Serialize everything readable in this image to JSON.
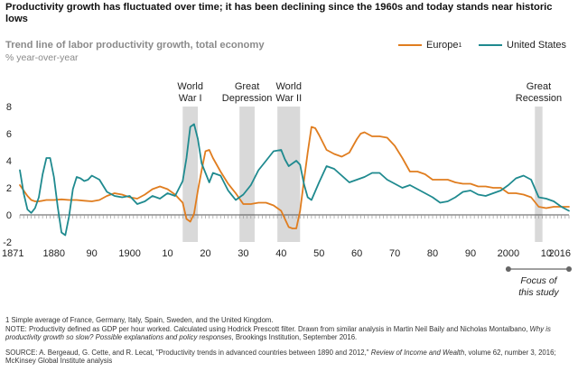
{
  "header": {
    "title": "Productivity growth has fluctuated over time; it has been declining since the 1960s and today stands near historic lows",
    "subtitle": "Trend line of labor productivity growth, total economy",
    "unit": "% year-over-year"
  },
  "legend": {
    "europe_label": "Europe",
    "europe_sup": "1",
    "us_label": "United States"
  },
  "colors": {
    "europe": "#e07d1f",
    "us": "#1f8a8f",
    "band": "#d9d9d9",
    "axis": "#555555"
  },
  "focus_label": "Focus of this study",
  "notes": {
    "footnote": "1  Simple average of France, Germany, Italy, Spain, Sweden, and the United Kingdom.",
    "note_lead": "NOTE: Productivity defined as GDP per hour worked. Calculated using Hodrick Prescott filter. Drawn from similar analysis in Martin Neil Baily and Nicholas Montalbano, ",
    "note_italic": "Why is productivity growth so slow? Possible explanations and policy responses",
    "note_tail": ", Brookings Institution, September 2016.",
    "source_lead": "SOURCE:  A. Bergeaud, G. Cette, and R. Lecat, \"Productivity trends in advanced countries between 1890 and 2012,\" ",
    "source_italic": "Review of Income and Wealth",
    "source_tail": ", volume 62, number 3, 2016; McKinsey Global Institute analysis"
  },
  "chart_data": {
    "type": "line",
    "xlim": [
      1871,
      2016
    ],
    "ylim": [
      -2,
      8
    ],
    "yticks": [
      -2,
      0,
      2,
      4,
      6,
      8
    ],
    "xtick_labels": [
      {
        "x": 1871,
        "label": "1871"
      },
      {
        "x": 1880,
        "label": "1880"
      },
      {
        "x": 1890,
        "label": "90"
      },
      {
        "x": 1900,
        "label": "1900"
      },
      {
        "x": 1910,
        "label": "10"
      },
      {
        "x": 1920,
        "label": "20"
      },
      {
        "x": 1930,
        "label": "30"
      },
      {
        "x": 1940,
        "label": "40"
      },
      {
        "x": 1950,
        "label": "50"
      },
      {
        "x": 1960,
        "label": "60"
      },
      {
        "x": 1970,
        "label": "70"
      },
      {
        "x": 1980,
        "label": "80"
      },
      {
        "x": 1990,
        "label": "90"
      },
      {
        "x": 2000,
        "label": "2000"
      },
      {
        "x": 2010,
        "label": "10"
      },
      {
        "x": 2016,
        "label": "2016"
      }
    ],
    "bands": [
      {
        "label_lines": [
          "World",
          "War I"
        ],
        "from": 1914,
        "to": 1918
      },
      {
        "label_lines": [
          "Great",
          "Depression"
        ],
        "from": 1929,
        "to": 1933
      },
      {
        "label_lines": [
          "World",
          "War II"
        ],
        "from": 1939,
        "to": 1945
      },
      {
        "label_lines": [
          "Great",
          "Recession"
        ],
        "from": 2007,
        "to": 2009
      }
    ],
    "focus_range": [
      2000,
      2016
    ],
    "series": [
      {
        "name": "Europe",
        "key": "europe",
        "x": [
          1871,
          1872,
          1873,
          1874,
          1875,
          1876,
          1877,
          1878,
          1880,
          1882,
          1884,
          1886,
          1888,
          1890,
          1892,
          1894,
          1896,
          1898,
          1900,
          1902,
          1904,
          1906,
          1908,
          1910,
          1912,
          1914,
          1915,
          1916,
          1917,
          1918,
          1919,
          1920,
          1921,
          1922,
          1924,
          1926,
          1928,
          1930,
          1932,
          1934,
          1936,
          1938,
          1940,
          1941,
          1942,
          1943,
          1944,
          1945,
          1946,
          1947,
          1948,
          1949,
          1950,
          1952,
          1954,
          1956,
          1958,
          1960,
          1961,
          1962,
          1964,
          1966,
          1968,
          1970,
          1972,
          1974,
          1976,
          1978,
          1980,
          1982,
          1984,
          1986,
          1988,
          1990,
          1992,
          1994,
          1996,
          1998,
          2000,
          2002,
          2004,
          2006,
          2008,
          2010,
          2012,
          2014,
          2016
        ],
        "y": [
          2.2,
          1.8,
          1.4,
          1.1,
          1.0,
          1.0,
          1.05,
          1.1,
          1.1,
          1.15,
          1.1,
          1.1,
          1.05,
          1.0,
          1.1,
          1.4,
          1.6,
          1.5,
          1.3,
          1.2,
          1.5,
          1.9,
          2.1,
          1.9,
          1.5,
          0.9,
          -0.3,
          -0.5,
          0.1,
          1.8,
          3.3,
          4.7,
          4.8,
          4.2,
          3.2,
          2.3,
          1.6,
          0.8,
          0.8,
          0.9,
          0.9,
          0.7,
          0.3,
          -0.3,
          -0.9,
          -1.0,
          -1.0,
          0.3,
          2.5,
          4.6,
          6.5,
          6.4,
          5.9,
          4.8,
          4.5,
          4.3,
          4.6,
          5.6,
          6.0,
          6.1,
          5.8,
          5.8,
          5.7,
          5.1,
          4.2,
          3.2,
          3.2,
          3.0,
          2.6,
          2.6,
          2.6,
          2.4,
          2.3,
          2.3,
          2.1,
          2.1,
          2.0,
          2.0,
          1.6,
          1.6,
          1.5,
          1.3,
          0.6,
          0.5,
          0.6,
          0.6,
          0.6
        ]
      },
      {
        "name": "United States",
        "key": "us",
        "x": [
          1871,
          1872,
          1873,
          1874,
          1875,
          1876,
          1877,
          1878,
          1879,
          1880,
          1881,
          1882,
          1883,
          1884,
          1885,
          1886,
          1887,
          1888,
          1889,
          1890,
          1892,
          1894,
          1896,
          1898,
          1900,
          1902,
          1904,
          1906,
          1908,
          1910,
          1912,
          1914,
          1915,
          1916,
          1917,
          1918,
          1919,
          1920,
          1921,
          1922,
          1924,
          1926,
          1928,
          1929,
          1930,
          1932,
          1934,
          1936,
          1938,
          1940,
          1941,
          1942,
          1943,
          1944,
          1945,
          1946,
          1947,
          1948,
          1950,
          1952,
          1954,
          1956,
          1958,
          1960,
          1962,
          1964,
          1966,
          1968,
          1970,
          1972,
          1974,
          1976,
          1978,
          1980,
          1982,
          1984,
          1986,
          1988,
          1990,
          1992,
          1994,
          1996,
          1998,
          2000,
          2002,
          2004,
          2006,
          2008,
          2010,
          2012,
          2014,
          2016
        ],
        "y": [
          3.3,
          1.6,
          0.4,
          0.15,
          0.5,
          1.3,
          3.0,
          4.2,
          4.2,
          2.8,
          0.6,
          -1.3,
          -1.5,
          -0.1,
          1.9,
          2.8,
          2.7,
          2.5,
          2.6,
          2.9,
          2.6,
          1.7,
          1.4,
          1.3,
          1.4,
          0.8,
          1.0,
          1.4,
          1.2,
          1.6,
          1.4,
          2.5,
          4.2,
          6.5,
          6.7,
          5.6,
          3.8,
          3.1,
          2.4,
          3.1,
          2.9,
          1.8,
          1.1,
          1.3,
          1.5,
          2.2,
          3.3,
          4.0,
          4.7,
          4.8,
          4.1,
          3.6,
          3.8,
          4.0,
          3.7,
          2.3,
          1.3,
          1.1,
          2.4,
          3.6,
          3.4,
          2.9,
          2.4,
          2.6,
          2.8,
          3.1,
          3.1,
          2.6,
          2.3,
          2.0,
          2.2,
          1.9,
          1.6,
          1.3,
          0.9,
          1.0,
          1.3,
          1.7,
          1.8,
          1.5,
          1.4,
          1.6,
          1.8,
          2.2,
          2.7,
          2.9,
          2.6,
          1.3,
          1.2,
          1.0,
          0.6,
          0.3
        ]
      }
    ]
  }
}
